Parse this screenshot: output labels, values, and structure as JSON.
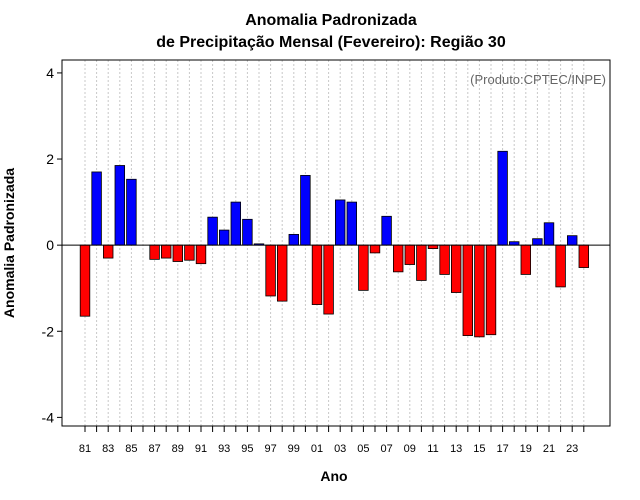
{
  "chart_data": {
    "type": "bar",
    "title_line1": "Anomalia Padronizada",
    "title_line2": "de Precipitação Mensal (Fevereiro): Região 30",
    "source": "(Produto:CPTEC/INPE)",
    "xlabel": "Ano",
    "ylabel": "Anomalia Padronizada",
    "ylim": [
      -4.2,
      4.3
    ],
    "yticks": [
      -4,
      -2,
      0,
      2,
      4
    ],
    "yticklabels": [
      "-4",
      "-2",
      "0",
      "2",
      "4"
    ],
    "categories": [
      "81",
      "82",
      "83",
      "84",
      "85",
      "86",
      "87",
      "88",
      "89",
      "90",
      "91",
      "92",
      "93",
      "94",
      "95",
      "96",
      "97",
      "98",
      "99",
      "00",
      "01",
      "02",
      "03",
      "04",
      "05",
      "06",
      "07",
      "08",
      "09",
      "10",
      "11",
      "12",
      "13",
      "14",
      "15",
      "16",
      "17",
      "18",
      "19",
      "20",
      "21",
      "22",
      "23",
      "24"
    ],
    "xticklabels": [
      "81",
      "83",
      "85",
      "87",
      "89",
      "91",
      "93",
      "95",
      "97",
      "99",
      "01",
      "03",
      "05",
      "07",
      "09",
      "11",
      "13",
      "15",
      "17",
      "19",
      "21",
      "23"
    ],
    "values": [
      -1.65,
      1.7,
      -0.3,
      1.85,
      1.53,
      0.0,
      -0.33,
      -0.3,
      -0.38,
      -0.35,
      -0.43,
      0.65,
      0.35,
      1.0,
      0.6,
      0.03,
      -1.18,
      -1.3,
      0.25,
      1.62,
      -1.38,
      -1.6,
      1.05,
      1.0,
      -1.05,
      -0.18,
      0.67,
      -0.62,
      -0.45,
      -0.82,
      -0.08,
      -0.68,
      -1.1,
      -2.1,
      -2.13,
      -2.08,
      2.18,
      0.08,
      -0.68,
      0.15,
      0.52,
      -0.97,
      0.22,
      -0.52
    ],
    "positive_color": "#0000ff",
    "negative_color": "#ff0000",
    "grid": "vertical dotted"
  }
}
